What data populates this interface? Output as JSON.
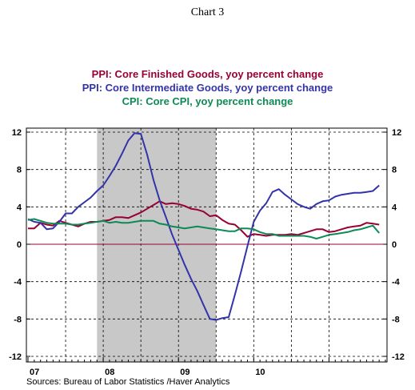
{
  "chart_data": {
    "type": "line",
    "title": "Chart 3",
    "source": "Sources:  Bureau of Labor Statistics /Haver Analytics",
    "ylim": [
      -12,
      12
    ],
    "yticks": [
      12,
      8,
      4,
      0,
      -4,
      -8,
      -12
    ],
    "x_range": [
      2007.0,
      2011.75
    ],
    "x_tick_labels": [
      {
        "label": "07",
        "x": 2007.0
      },
      {
        "label": "08",
        "x": 2008.0
      },
      {
        "label": "09",
        "x": 2009.0
      },
      {
        "label": "10",
        "x": 2010.0
      }
    ],
    "x_gridlines": [
      2007.5,
      2008.0,
      2008.5,
      2009.0,
      2009.5,
      2010.0,
      2010.5,
      2011.0
    ],
    "recession_shading": [
      2007.917,
      2009.5
    ],
    "grid": true,
    "series": [
      {
        "name": "PPI:  Core Finished Goods, yoy percent change",
        "color": "#990033",
        "x": [
          2007.0,
          2007.083,
          2007.167,
          2007.25,
          2007.333,
          2007.417,
          2007.5,
          2007.583,
          2007.667,
          2007.75,
          2007.833,
          2007.917,
          2008.0,
          2008.083,
          2008.167,
          2008.25,
          2008.333,
          2008.417,
          2008.5,
          2008.583,
          2008.667,
          2008.75,
          2008.833,
          2008.917,
          2009.0,
          2009.083,
          2009.167,
          2009.25,
          2009.333,
          2009.417,
          2009.5,
          2009.583,
          2009.667,
          2009.75,
          2009.833,
          2009.917,
          2010.0,
          2010.083,
          2010.167,
          2010.25,
          2010.333,
          2010.417,
          2010.5,
          2010.583,
          2010.667,
          2010.75,
          2010.833,
          2010.917,
          2011.0,
          2011.083,
          2011.167,
          2011.25,
          2011.333,
          2011.417,
          2011.5,
          2011.583,
          2011.667
        ],
        "values": [
          1.7,
          1.7,
          2.3,
          2.1,
          2.0,
          2.5,
          2.3,
          2.1,
          1.9,
          2.2,
          2.4,
          2.4,
          2.5,
          2.6,
          2.9,
          2.9,
          2.8,
          3.1,
          3.4,
          3.8,
          4.2,
          4.6,
          4.3,
          4.4,
          4.3,
          4.1,
          3.8,
          3.7,
          3.5,
          3.0,
          3.1,
          2.6,
          2.2,
          2.1,
          1.5,
          0.8,
          1.1,
          1.0,
          0.9,
          1.0,
          1.0,
          1.0,
          1.1,
          1.0,
          1.2,
          1.4,
          1.6,
          1.6,
          1.3,
          1.4,
          1.6,
          1.8,
          1.9,
          2.0,
          2.3,
          2.2,
          2.1
        ]
      },
      {
        "name": "PPI:  Core Intermediate Goods, yoy percent change",
        "color": "#3333aa",
        "x": [
          2007.0,
          2007.083,
          2007.167,
          2007.25,
          2007.333,
          2007.417,
          2007.5,
          2007.583,
          2007.667,
          2007.75,
          2007.833,
          2007.917,
          2008.0,
          2008.083,
          2008.167,
          2008.25,
          2008.333,
          2008.417,
          2008.5,
          2008.583,
          2008.667,
          2008.75,
          2008.833,
          2008.917,
          2009.0,
          2009.083,
          2009.167,
          2009.25,
          2009.333,
          2009.417,
          2009.5,
          2009.583,
          2009.667,
          2009.75,
          2009.833,
          2009.917,
          2010.0,
          2010.083,
          2010.167,
          2010.25,
          2010.333,
          2010.417,
          2010.5,
          2010.583,
          2010.667,
          2010.75,
          2010.833,
          2010.917,
          2011.0,
          2011.083,
          2011.167,
          2011.25,
          2011.333,
          2011.417,
          2011.5,
          2011.583,
          2011.667
        ],
        "values": [
          2.7,
          2.4,
          2.3,
          1.6,
          1.7,
          2.4,
          3.3,
          3.3,
          4.0,
          4.5,
          5.0,
          5.7,
          6.3,
          7.3,
          8.4,
          9.7,
          11.1,
          11.9,
          11.8,
          9.6,
          6.9,
          4.7,
          2.9,
          1.0,
          -0.6,
          -2.2,
          -3.7,
          -5.0,
          -6.5,
          -8.0,
          -8.1,
          -7.9,
          -7.8,
          -5.4,
          -2.9,
          -0.2,
          2.4,
          3.6,
          4.4,
          5.6,
          5.9,
          5.3,
          4.8,
          4.3,
          4.0,
          3.8,
          4.3,
          4.6,
          4.7,
          5.1,
          5.3,
          5.4,
          5.5,
          5.5,
          5.6,
          5.7,
          6.3
        ]
      },
      {
        "name": "CPI:  Core CPI, yoy percent change",
        "color": "#0d8a55",
        "x": [
          2007.0,
          2007.083,
          2007.167,
          2007.25,
          2007.333,
          2007.417,
          2007.5,
          2007.583,
          2007.667,
          2007.75,
          2007.833,
          2007.917,
          2008.0,
          2008.083,
          2008.167,
          2008.25,
          2008.333,
          2008.417,
          2008.5,
          2008.583,
          2008.667,
          2008.75,
          2008.833,
          2008.917,
          2009.0,
          2009.083,
          2009.167,
          2009.25,
          2009.333,
          2009.417,
          2009.5,
          2009.583,
          2009.667,
          2009.75,
          2009.833,
          2009.917,
          2010.0,
          2010.083,
          2010.167,
          2010.25,
          2010.333,
          2010.417,
          2010.5,
          2010.583,
          2010.667,
          2010.75,
          2010.833,
          2010.917,
          2011.0,
          2011.083,
          2011.167,
          2011.25,
          2011.333,
          2011.417,
          2011.5,
          2011.583,
          2011.667
        ],
        "values": [
          2.6,
          2.7,
          2.5,
          2.3,
          2.2,
          2.2,
          2.2,
          2.1,
          2.1,
          2.2,
          2.3,
          2.4,
          2.5,
          2.3,
          2.4,
          2.3,
          2.3,
          2.4,
          2.5,
          2.5,
          2.5,
          2.2,
          2.1,
          1.9,
          1.8,
          1.7,
          1.8,
          1.9,
          1.8,
          1.7,
          1.6,
          1.5,
          1.4,
          1.4,
          1.7,
          1.7,
          1.6,
          1.3,
          1.1,
          1.1,
          0.9,
          0.9,
          0.9,
          0.9,
          0.9,
          0.8,
          0.6,
          0.8,
          1.0,
          1.1,
          1.2,
          1.3,
          1.5,
          1.6,
          1.8,
          2.0,
          1.2
        ]
      }
    ]
  }
}
